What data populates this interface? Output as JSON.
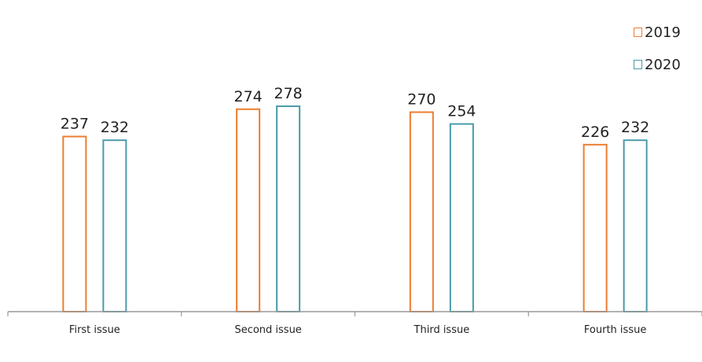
{
  "chart_data": {
    "type": "bar",
    "categories": [
      "First issue",
      "Second issue",
      "Third issue",
      "Fourth issue"
    ],
    "series": [
      {
        "name": "2019",
        "values": [
          237,
          274,
          270,
          226
        ],
        "color": "#ED7D31"
      },
      {
        "name": "2020",
        "values": [
          232,
          278,
          254,
          232
        ],
        "color": "#4A9BAA"
      }
    ],
    "title": "",
    "xlabel": "",
    "ylabel": "",
    "ylim": [
      0,
      320
    ],
    "grid": false,
    "legend": "top-right",
    "bar_fill": "#ffffff",
    "axis_color": "#999999"
  }
}
